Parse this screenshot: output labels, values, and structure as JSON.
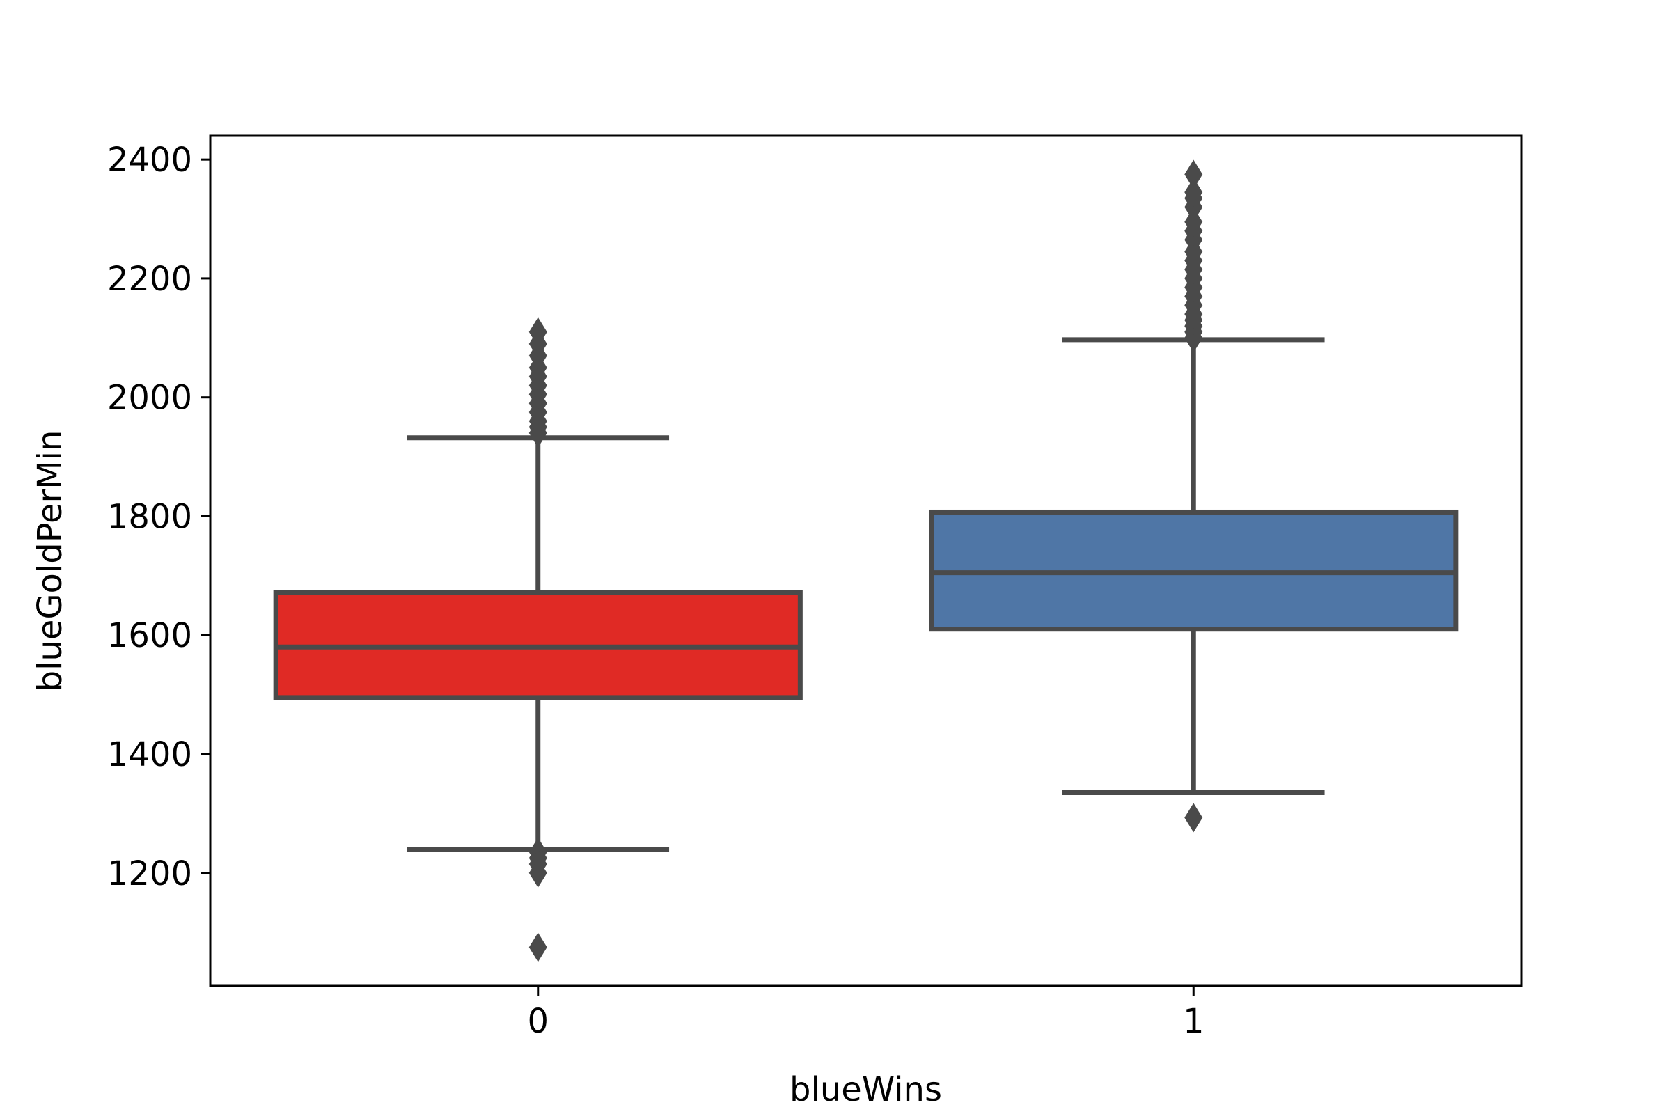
{
  "chart_data": {
    "type": "box",
    "xlabel": "blueWins",
    "ylabel": "blueGoldPerMin",
    "categories": [
      "0",
      "1"
    ],
    "ylim": [
      1010,
      2440
    ],
    "yticks": [
      1200,
      1400,
      1600,
      1800,
      2000,
      2200,
      2400
    ],
    "grid": false,
    "boxes": [
      {
        "category": "0",
        "color": "#e02a25",
        "whisker_low": 1240,
        "q1": 1495,
        "median": 1580,
        "q3": 1672,
        "whisker_high": 1932,
        "outliers": [
          1940,
          1950,
          1960,
          1975,
          1990,
          2005,
          2020,
          2035,
          2050,
          2070,
          2090,
          2110,
          1235,
          1225,
          1215,
          1200,
          1075
        ]
      },
      {
        "category": "1",
        "color": "#4f76a6",
        "whisker_low": 1335,
        "q1": 1610,
        "median": 1705,
        "q3": 1807,
        "whisker_high": 2097,
        "outliers": [
          2100,
          2110,
          2120,
          2130,
          2140,
          2155,
          2170,
          2185,
          2200,
          2215,
          2230,
          2245,
          2265,
          2280,
          2295,
          2320,
          2335,
          2345,
          2375,
          1293
        ]
      }
    ],
    "style": {
      "line_color": "#4a4a4a",
      "axis_color": "#000000"
    }
  }
}
